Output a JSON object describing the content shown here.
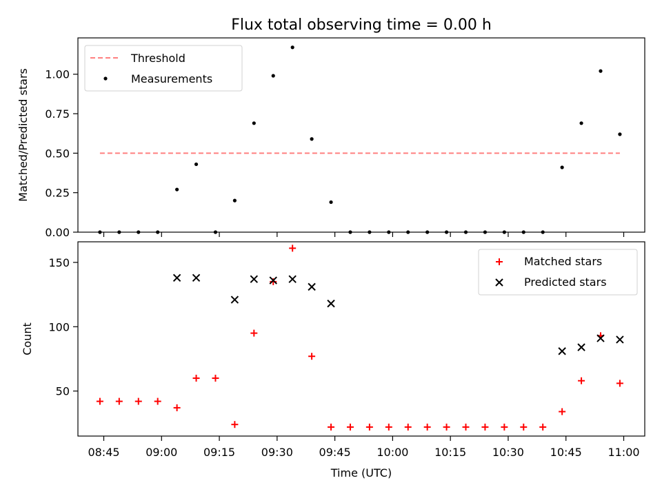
{
  "chart_data": [
    {
      "type": "scatter",
      "title": "Flux total observing time = 0.00 h",
      "xlabel": "",
      "ylabel": "Matched/Predicted stars",
      "ylim": [
        0,
        1.23
      ],
      "yticks": [
        "0.00",
        "0.25",
        "0.50",
        "0.75",
        "1.00"
      ],
      "legend_position": "top-left",
      "series": [
        {
          "name": "Threshold",
          "kind": "line",
          "style": "dashed",
          "color": "#ff7f7f",
          "x": [
            "08:44",
            "10:59"
          ],
          "y": [
            0.5,
            0.5
          ]
        },
        {
          "name": "Measurements",
          "kind": "point",
          "color": "#000000",
          "x": [
            "08:44",
            "08:49",
            "08:54",
            "08:59",
            "09:04",
            "09:09",
            "09:14",
            "09:19",
            "09:24",
            "09:29",
            "09:34",
            "09:39",
            "09:44",
            "09:49",
            "09:54",
            "09:59",
            "10:04",
            "10:09",
            "10:14",
            "10:19",
            "10:24",
            "10:29",
            "10:34",
            "10:39",
            "10:44",
            "10:49",
            "10:54",
            "10:59"
          ],
          "y": [
            0,
            0,
            0,
            0,
            0.27,
            0.43,
            0,
            0.2,
            0.69,
            0.99,
            1.17,
            0.59,
            0.19,
            0,
            0,
            0,
            0,
            0,
            0,
            0,
            0,
            0,
            0,
            0,
            0.41,
            0.69,
            1.02,
            0.62
          ]
        }
      ]
    },
    {
      "type": "scatter",
      "title": "",
      "xlabel": "Time (UTC)",
      "ylabel": "Count",
      "ylim": [
        15,
        166
      ],
      "yticks": [
        "50",
        "100",
        "150"
      ],
      "xticks": [
        "08:45",
        "09:00",
        "09:15",
        "09:30",
        "09:45",
        "10:00",
        "10:15",
        "10:30",
        "10:45",
        "11:00"
      ],
      "legend_position": "top-right",
      "series": [
        {
          "name": "Matched stars",
          "marker": "plus",
          "color": "#ff0000",
          "x": [
            "08:44",
            "08:49",
            "08:54",
            "08:59",
            "09:04",
            "09:09",
            "09:14",
            "09:19",
            "09:24",
            "09:29",
            "09:34",
            "09:39",
            "09:44",
            "09:49",
            "09:54",
            "09:59",
            "10:04",
            "10:09",
            "10:14",
            "10:19",
            "10:24",
            "10:29",
            "10:34",
            "10:39",
            "10:44",
            "10:49",
            "10:54",
            "10:59"
          ],
          "y": [
            42,
            42,
            42,
            42,
            37,
            60,
            60,
            24,
            95,
            135,
            161,
            77,
            22,
            22,
            22,
            22,
            22,
            22,
            22,
            22,
            22,
            22,
            22,
            22,
            34,
            58,
            93,
            56
          ]
        },
        {
          "name": "Predicted stars",
          "marker": "x",
          "color": "#000000",
          "x": [
            "09:04",
            "09:09",
            "09:19",
            "09:24",
            "09:29",
            "09:34",
            "09:39",
            "09:44",
            "10:44",
            "10:49",
            "10:54",
            "10:59"
          ],
          "y": [
            138,
            138,
            121,
            137,
            136,
            137,
            131,
            118,
            81,
            84,
            91,
            90
          ]
        }
      ]
    }
  ]
}
